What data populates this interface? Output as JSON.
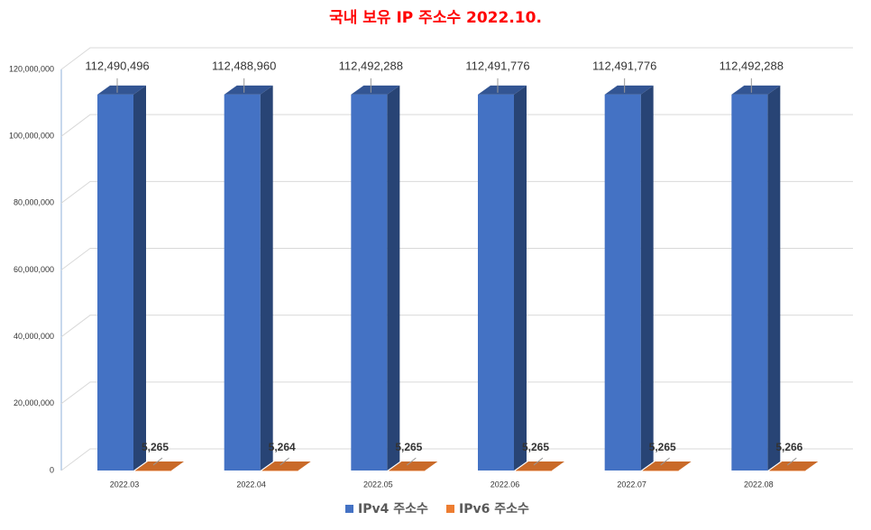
{
  "chart_data": {
    "type": "bar3d",
    "title": "국내 보유 IP 주소수 2022.10.",
    "categories": [
      "2022.03",
      "2022.04",
      "2022.05",
      "2022.06",
      "2022.07",
      "2022.08"
    ],
    "series": [
      {
        "name": "IPv4 주소수",
        "color": "#4472c4",
        "values": [
          112490496,
          112488960,
          112492288,
          112491776,
          112491776,
          112492288
        ],
        "value_labels": [
          "112,490,496",
          "112,488,960",
          "112,492,288",
          "112,491,776",
          "112,491,776",
          "112,492,288"
        ]
      },
      {
        "name": "IPv6 주소수",
        "color": "#ed7d31",
        "values": [
          5265,
          5264,
          5265,
          5265,
          5265,
          5266
        ],
        "value_labels": [
          "5,265",
          "5,264",
          "5,265",
          "5,265",
          "5,265",
          "5,266"
        ]
      }
    ],
    "ylim": [
      0,
      120000000
    ],
    "yticks": [
      0,
      {
        "value": 20000000,
        "label": "20,000,000"
      },
      {
        "value": 40000000,
        "label": "40,000,000"
      },
      {
        "value": 60000000,
        "label": "60,000,000"
      },
      {
        "value": 80000000,
        "label": "80,000,000"
      },
      {
        "value": 100000000,
        "label": "100,000,000"
      },
      {
        "value": 120000000,
        "label": "120,000,000"
      }
    ],
    "grid": true
  }
}
